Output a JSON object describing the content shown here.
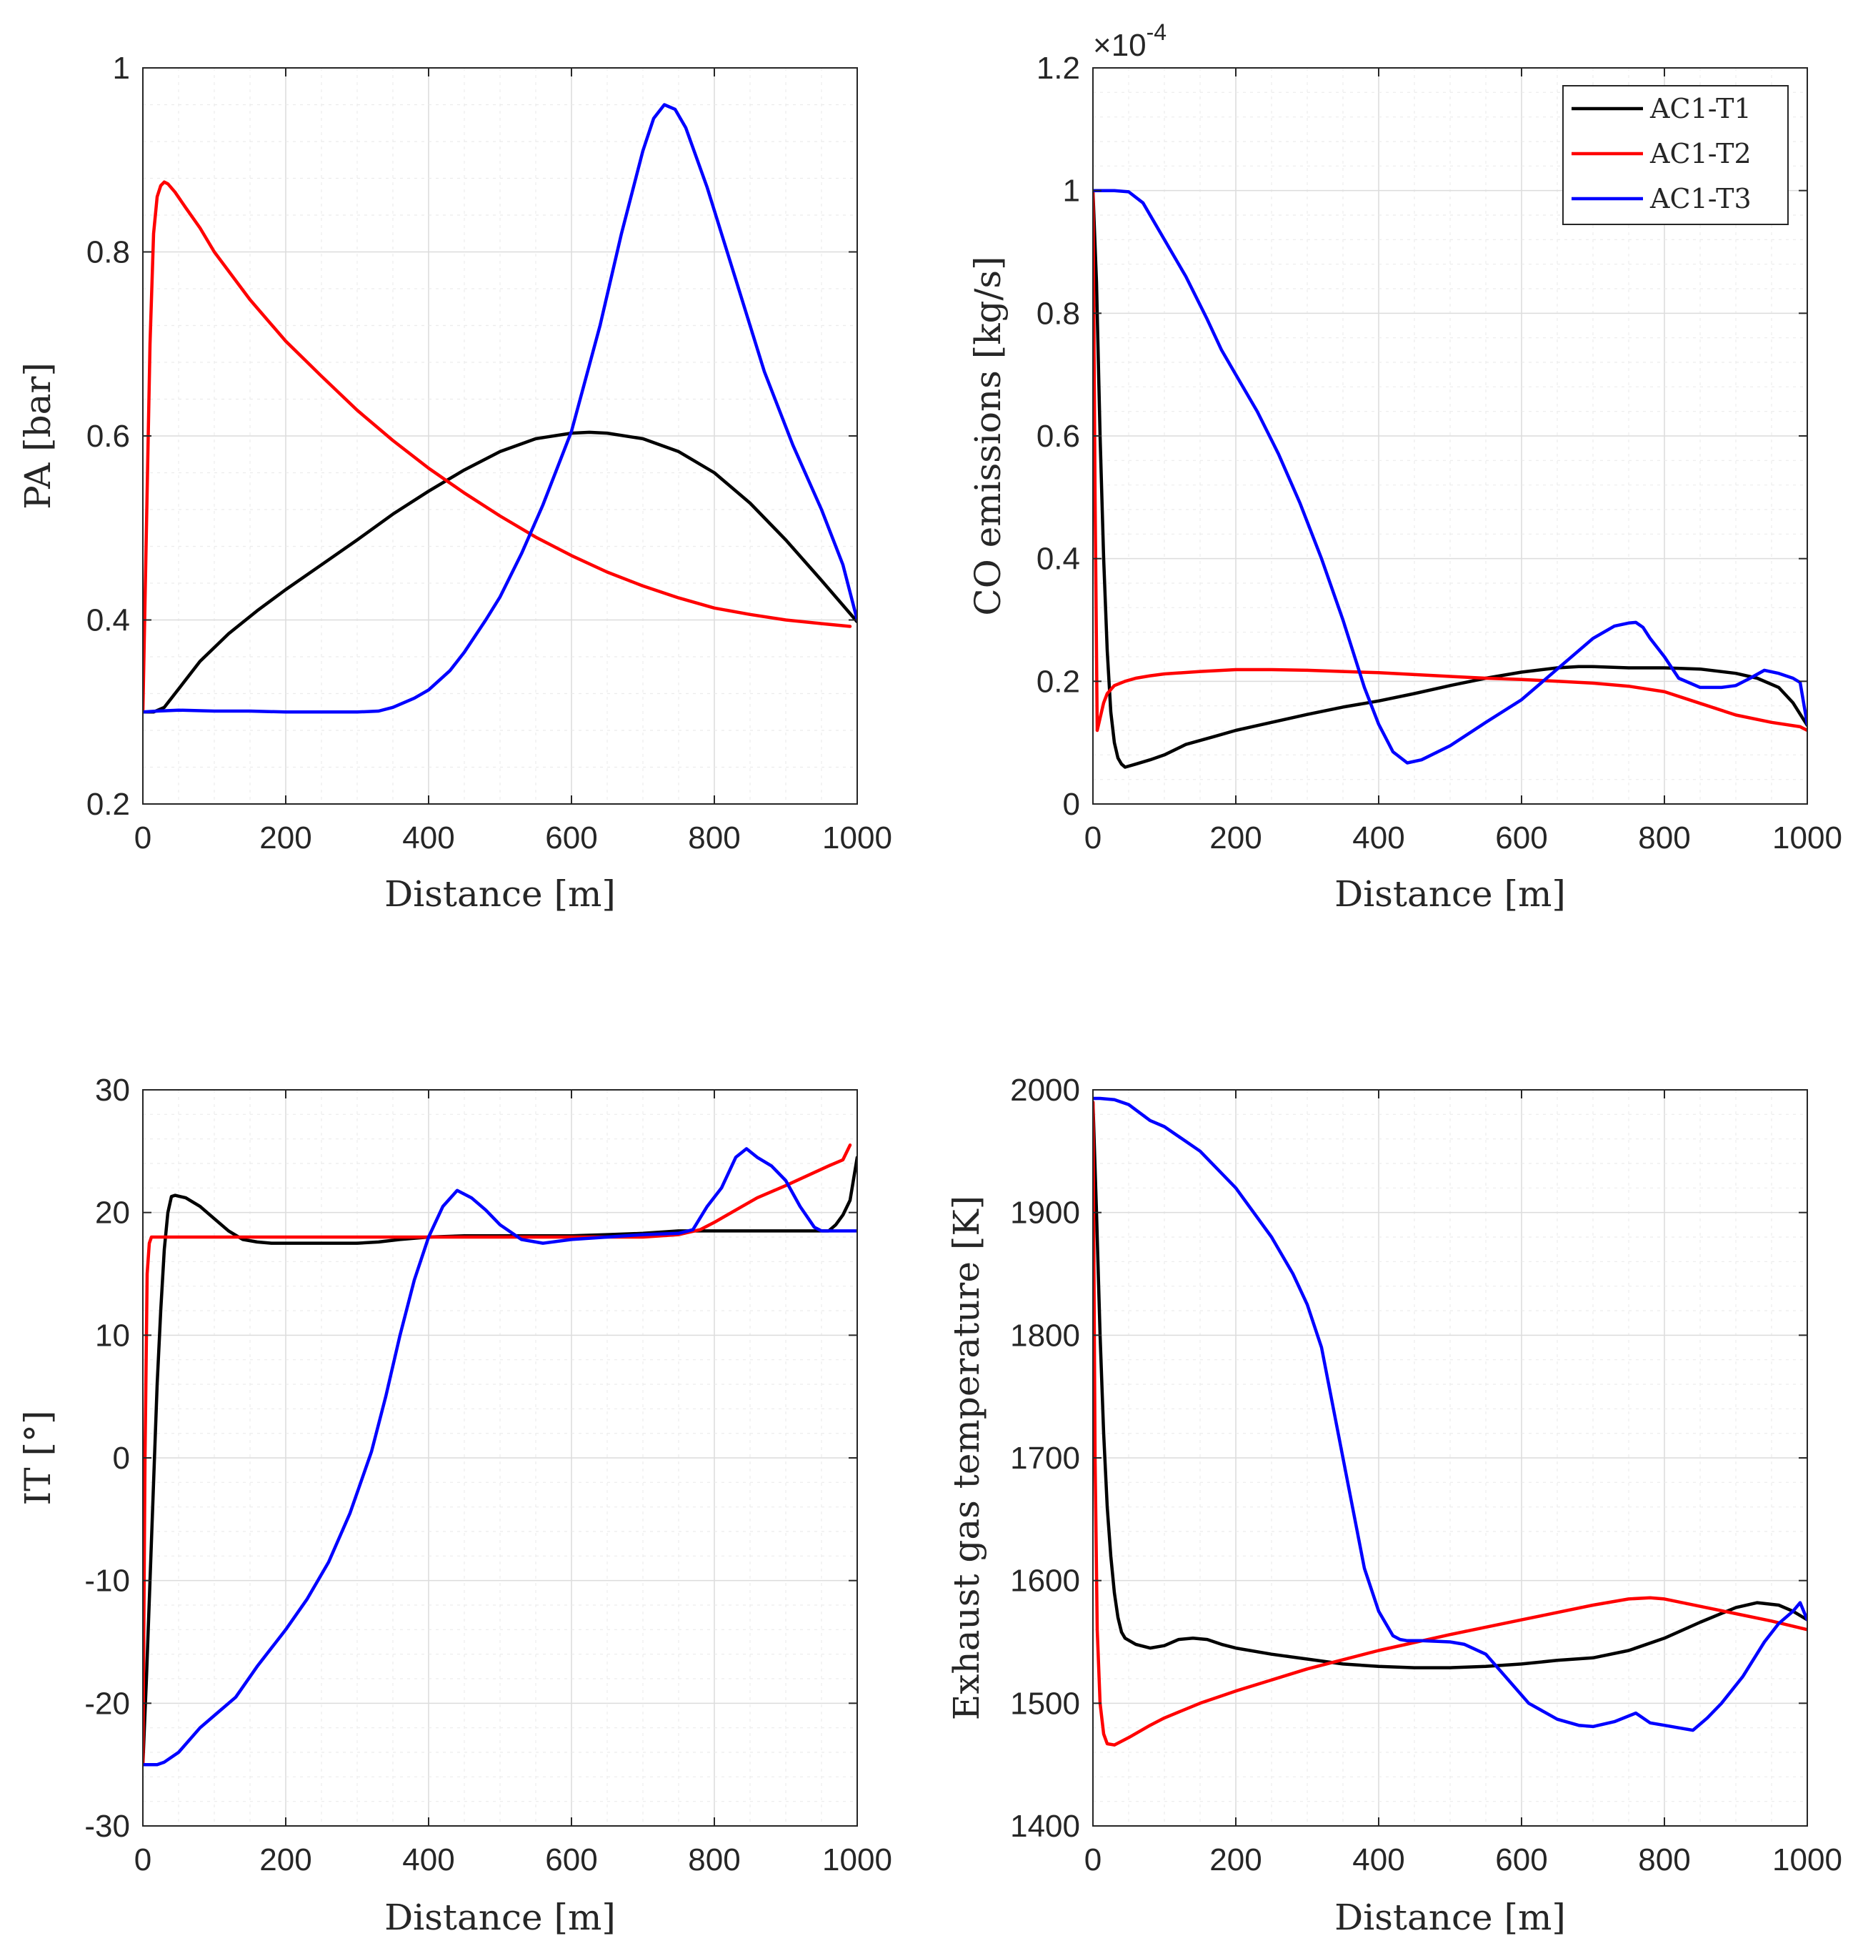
{
  "legend": {
    "entries": [
      {
        "name": "AC1-T1",
        "color": "#000000"
      },
      {
        "name": "AC1-T2",
        "color": "#ff0000"
      },
      {
        "name": "AC1-T3",
        "color": "#0000ff"
      }
    ]
  },
  "chart_data": [
    {
      "id": "pa",
      "type": "line",
      "xlabel": "Distance [m]",
      "ylabel": "PA [bar]",
      "xlim": [
        0,
        1000
      ],
      "ylim": [
        0.2,
        1.0
      ],
      "xticks": [
        0,
        200,
        400,
        600,
        800,
        1000
      ],
      "xtick_labels": [
        "0",
        "200",
        "400",
        "600",
        "800",
        "1000"
      ],
      "yticks": [
        0.2,
        0.4,
        0.6,
        0.8,
        1.0
      ],
      "ytick_labels": [
        "0.2",
        "0.4",
        "0.6",
        "0.8",
        "1"
      ],
      "multiplier": "",
      "grid": true,
      "series": [
        {
          "name": "AC1-T1",
          "color": "#000000",
          "x": [
            0,
            15,
            30,
            50,
            80,
            120,
            160,
            200,
            250,
            300,
            350,
            400,
            450,
            500,
            550,
            600,
            625,
            650,
            700,
            750,
            800,
            850,
            900,
            950,
            1000
          ],
          "y": [
            0.3,
            0.3,
            0.305,
            0.325,
            0.355,
            0.385,
            0.41,
            0.433,
            0.46,
            0.487,
            0.515,
            0.54,
            0.563,
            0.583,
            0.597,
            0.603,
            0.604,
            0.603,
            0.597,
            0.583,
            0.56,
            0.527,
            0.487,
            0.443,
            0.398
          ]
        },
        {
          "name": "AC1-T2",
          "color": "#ff0000",
          "x": [
            0,
            5,
            10,
            15,
            20,
            25,
            30,
            35,
            45,
            60,
            80,
            100,
            150,
            200,
            250,
            300,
            350,
            400,
            450,
            500,
            550,
            600,
            650,
            700,
            750,
            800,
            850,
            900,
            950,
            990
          ],
          "y": [
            0.3,
            0.5,
            0.7,
            0.82,
            0.86,
            0.872,
            0.876,
            0.874,
            0.865,
            0.848,
            0.826,
            0.8,
            0.748,
            0.703,
            0.665,
            0.628,
            0.595,
            0.565,
            0.538,
            0.513,
            0.49,
            0.47,
            0.452,
            0.437,
            0.424,
            0.413,
            0.406,
            0.4,
            0.396,
            0.393
          ]
        },
        {
          "name": "AC1-T3",
          "color": "#0000ff",
          "x": [
            0,
            20,
            50,
            100,
            150,
            200,
            250,
            300,
            330,
            350,
            380,
            400,
            430,
            450,
            480,
            500,
            530,
            560,
            600,
            640,
            670,
            700,
            715,
            730,
            745,
            760,
            790,
            830,
            870,
            910,
            950,
            980,
            1000
          ],
          "y": [
            0.3,
            0.301,
            0.302,
            0.301,
            0.301,
            0.3,
            0.3,
            0.3,
            0.301,
            0.305,
            0.315,
            0.324,
            0.345,
            0.365,
            0.4,
            0.425,
            0.472,
            0.525,
            0.605,
            0.72,
            0.82,
            0.91,
            0.945,
            0.96,
            0.955,
            0.935,
            0.87,
            0.77,
            0.67,
            0.59,
            0.52,
            0.46,
            0.4
          ]
        }
      ]
    },
    {
      "id": "co",
      "type": "line",
      "xlabel": "Distance [m]",
      "ylabel": "CO emissions [kg/s]",
      "xlim": [
        0,
        1000
      ],
      "ylim": [
        0,
        1.2
      ],
      "xticks": [
        0,
        200,
        400,
        600,
        800,
        1000
      ],
      "xtick_labels": [
        "0",
        "200",
        "400",
        "600",
        "800",
        "1000"
      ],
      "yticks": [
        0,
        0.2,
        0.4,
        0.6,
        0.8,
        1.0,
        1.2
      ],
      "ytick_labels": [
        "0",
        "0.2",
        "0.4",
        "0.6",
        "0.8",
        "1",
        "1.2"
      ],
      "multiplier": "×10",
      "multiplier_exponent": "-4",
      "grid": true,
      "series": [
        {
          "name": "AC1-T1",
          "color": "#000000",
          "x": [
            0,
            5,
            10,
            15,
            20,
            25,
            30,
            35,
            40,
            45,
            60,
            80,
            100,
            130,
            170,
            200,
            250,
            300,
            350,
            400,
            450,
            500,
            550,
            600,
            650,
            680,
            700,
            750,
            800,
            850,
            900,
            930,
            960,
            980,
            1000
          ],
          "y": [
            1.0,
            0.85,
            0.6,
            0.4,
            0.25,
            0.15,
            0.1,
            0.075,
            0.065,
            0.06,
            0.065,
            0.072,
            0.08,
            0.097,
            0.11,
            0.12,
            0.133,
            0.146,
            0.158,
            0.168,
            0.18,
            0.193,
            0.205,
            0.215,
            0.222,
            0.224,
            0.224,
            0.222,
            0.222,
            0.22,
            0.213,
            0.205,
            0.19,
            0.165,
            0.128
          ]
        },
        {
          "name": "AC1-T2",
          "color": "#ff0000",
          "x": [
            0,
            3,
            6,
            10,
            15,
            20,
            30,
            45,
            60,
            80,
            100,
            150,
            200,
            250,
            300,
            350,
            400,
            450,
            500,
            550,
            600,
            650,
            700,
            750,
            800,
            850,
            900,
            950,
            990,
            1000
          ],
          "y": [
            1.0,
            0.5,
            0.12,
            0.14,
            0.165,
            0.18,
            0.193,
            0.2,
            0.205,
            0.209,
            0.212,
            0.216,
            0.219,
            0.219,
            0.218,
            0.216,
            0.214,
            0.211,
            0.208,
            0.205,
            0.203,
            0.2,
            0.197,
            0.192,
            0.183,
            0.164,
            0.145,
            0.133,
            0.126,
            0.12
          ]
        },
        {
          "name": "AC1-T3",
          "color": "#0000ff",
          "x": [
            0,
            10,
            30,
            50,
            70,
            100,
            130,
            160,
            180,
            200,
            230,
            260,
            290,
            320,
            350,
            380,
            400,
            420,
            440,
            460,
            500,
            550,
            600,
            650,
            700,
            730,
            750,
            760,
            770,
            780,
            800,
            820,
            850,
            880,
            900,
            920,
            940,
            960,
            980,
            990,
            1000
          ],
          "y": [
            1.0,
            1.0,
            1.0,
            0.998,
            0.98,
            0.92,
            0.86,
            0.79,
            0.74,
            0.7,
            0.64,
            0.57,
            0.49,
            0.4,
            0.3,
            0.19,
            0.13,
            0.085,
            0.067,
            0.072,
            0.095,
            0.133,
            0.17,
            0.22,
            0.27,
            0.29,
            0.295,
            0.296,
            0.288,
            0.27,
            0.24,
            0.205,
            0.19,
            0.19,
            0.193,
            0.205,
            0.218,
            0.213,
            0.205,
            0.198,
            0.13
          ]
        }
      ]
    },
    {
      "id": "it",
      "type": "line",
      "xlabel": "Distance [m]",
      "ylabel": "IT [°]",
      "xlim": [
        0,
        1000
      ],
      "ylim": [
        -30,
        30
      ],
      "xticks": [
        0,
        200,
        400,
        600,
        800,
        1000
      ],
      "xtick_labels": [
        "0",
        "200",
        "400",
        "600",
        "800",
        "1000"
      ],
      "yticks": [
        -30,
        -20,
        -10,
        0,
        10,
        20,
        30
      ],
      "ytick_labels": [
        "-30",
        "-20",
        "-10",
        "0",
        "10",
        "20",
        "30"
      ],
      "multiplier": "",
      "grid": true,
      "series": [
        {
          "name": "AC1-T1",
          "color": "#000000",
          "x": [
            0,
            5,
            10,
            15,
            20,
            25,
            30,
            35,
            40,
            45,
            60,
            80,
            100,
            120,
            140,
            160,
            180,
            200,
            250,
            300,
            330,
            360,
            400,
            450,
            500,
            550,
            600,
            650,
            700,
            750,
            800,
            850,
            900,
            950,
            960,
            970,
            980,
            990,
            1000
          ],
          "y": [
            -25,
            -18,
            -10,
            -2,
            6,
            12,
            17,
            20,
            21.3,
            21.4,
            21.2,
            20.5,
            19.5,
            18.5,
            17.8,
            17.6,
            17.5,
            17.5,
            17.5,
            17.5,
            17.6,
            17.8,
            18.0,
            18.1,
            18.1,
            18.1,
            18.1,
            18.2,
            18.3,
            18.5,
            18.5,
            18.5,
            18.5,
            18.5,
            18.5,
            19,
            19.8,
            21,
            24.5
          ]
        },
        {
          "name": "AC1-T2",
          "color": "#ff0000",
          "x": [
            0,
            3,
            6,
            9,
            12,
            18,
            30,
            60,
            100,
            200,
            300,
            400,
            500,
            600,
            700,
            750,
            780,
            800,
            830,
            860,
            900,
            930,
            960,
            980,
            990
          ],
          "y": [
            -25,
            0,
            15,
            17.5,
            18,
            18,
            18,
            18,
            18,
            18,
            18,
            18,
            18,
            18,
            18,
            18.2,
            18.6,
            19.2,
            20.2,
            21.2,
            22.2,
            23.0,
            23.8,
            24.3,
            25.5
          ]
        },
        {
          "name": "AC1-T3",
          "color": "#0000ff",
          "x": [
            0,
            20,
            30,
            50,
            80,
            100,
            130,
            160,
            200,
            230,
            260,
            290,
            320,
            340,
            360,
            380,
            400,
            420,
            440,
            460,
            480,
            500,
            530,
            560,
            600,
            650,
            700,
            750,
            770,
            790,
            810,
            830,
            845,
            860,
            880,
            900,
            920,
            940,
            950,
            960,
            980,
            1000
          ],
          "y": [
            -25,
            -25,
            -24.8,
            -24,
            -22,
            -21,
            -19.5,
            -17,
            -14,
            -11.5,
            -8.5,
            -4.5,
            0.5,
            5,
            10,
            14.5,
            18,
            20.5,
            21.8,
            21.2,
            20.2,
            19,
            17.8,
            17.5,
            17.8,
            18.0,
            18.2,
            18.3,
            18.6,
            20.5,
            22,
            24.5,
            25.2,
            24.5,
            23.8,
            22.6,
            20.5,
            18.8,
            18.5,
            18.5,
            18.5,
            18.5
          ]
        }
      ]
    },
    {
      "id": "egt",
      "type": "line",
      "xlabel": "Distance [m]",
      "ylabel": "Exhaust gas temperature [K]",
      "xlim": [
        0,
        1000
      ],
      "ylim": [
        1400,
        2000
      ],
      "xticks": [
        0,
        200,
        400,
        600,
        800,
        1000
      ],
      "xtick_labels": [
        "0",
        "200",
        "400",
        "600",
        "800",
        "1000"
      ],
      "yticks": [
        1400,
        1500,
        1600,
        1700,
        1800,
        1900,
        2000
      ],
      "ytick_labels": [
        "1400",
        "1500",
        "1600",
        "1700",
        "1800",
        "1900",
        "2000"
      ],
      "multiplier": "",
      "grid": true,
      "series": [
        {
          "name": "AC1-T1",
          "color": "#000000",
          "x": [
            0,
            5,
            10,
            15,
            20,
            25,
            30,
            35,
            40,
            45,
            60,
            80,
            100,
            120,
            140,
            160,
            180,
            200,
            250,
            300,
            350,
            400,
            450,
            500,
            550,
            600,
            650,
            700,
            750,
            800,
            850,
            900,
            930,
            960,
            980,
            1000
          ],
          "y": [
            1990,
            1900,
            1800,
            1720,
            1660,
            1620,
            1590,
            1570,
            1558,
            1553,
            1548,
            1545,
            1547,
            1552,
            1553,
            1552,
            1548,
            1545,
            1540,
            1536,
            1532,
            1530,
            1529,
            1529,
            1530,
            1532,
            1535,
            1537,
            1543,
            1553,
            1566,
            1578,
            1582,
            1580,
            1575,
            1568
          ]
        },
        {
          "name": "AC1-T2",
          "color": "#ff0000",
          "x": [
            0,
            3,
            6,
            10,
            15,
            20,
            30,
            50,
            80,
            100,
            150,
            200,
            300,
            400,
            500,
            600,
            700,
            750,
            780,
            800,
            850,
            900,
            950,
            1000
          ],
          "y": [
            1990,
            1700,
            1560,
            1500,
            1475,
            1467,
            1466,
            1472,
            1482,
            1488,
            1500,
            1510,
            1528,
            1543,
            1556,
            1568,
            1580,
            1585,
            1586,
            1585,
            1579,
            1573,
            1567,
            1560
          ]
        },
        {
          "name": "AC1-T3",
          "color": "#0000ff",
          "x": [
            0,
            10,
            30,
            50,
            80,
            100,
            150,
            200,
            250,
            280,
            300,
            320,
            340,
            360,
            380,
            400,
            420,
            430,
            440,
            460,
            500,
            520,
            550,
            580,
            610,
            650,
            680,
            700,
            730,
            760,
            780,
            800,
            820,
            840,
            860,
            880,
            910,
            940,
            960,
            980,
            990,
            1000
          ],
          "y": [
            1993,
            1993,
            1992,
            1988,
            1975,
            1970,
            1950,
            1920,
            1880,
            1850,
            1825,
            1790,
            1730,
            1670,
            1610,
            1575,
            1555,
            1552,
            1551,
            1551,
            1550,
            1548,
            1540,
            1520,
            1500,
            1487,
            1482,
            1481,
            1485,
            1492,
            1484,
            1482,
            1480,
            1478,
            1488,
            1500,
            1522,
            1550,
            1565,
            1575,
            1582,
            1568
          ]
        }
      ]
    }
  ]
}
